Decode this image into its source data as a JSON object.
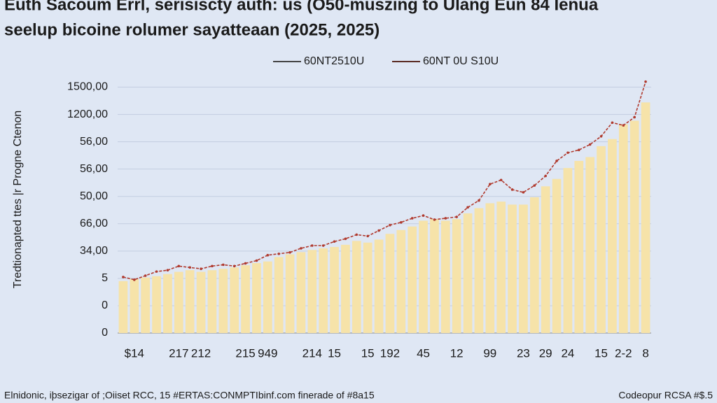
{
  "chart_data": {
    "type": "bar",
    "title": "Euth Sacoum Errl, serisiscty auth: us (O50-muszing to Ulang Eun 84 Ienua",
    "subtitle": "seelup bicoine rolumer sayatteaan (2025, 2025)",
    "y_label": "Tredtionapted ttes |r Progne Ctenon",
    "footer_left": "Elnidonic, iþsezigar of ;Oiiset RCC, 15 #ERTAS:CONMPTIbinf.com finerade of #8a15",
    "footer_right": "Codeopur RCSA #$.5",
    "categories": [
      null,
      "$14",
      null,
      null,
      null,
      "217",
      null,
      "212",
      null,
      null,
      null,
      "215",
      null,
      "949",
      null,
      null,
      null,
      "214",
      null,
      "15",
      null,
      null,
      "15",
      null,
      "192",
      null,
      null,
      "45",
      null,
      null,
      "12",
      null,
      null,
      "99",
      null,
      null,
      "23",
      null,
      "29",
      null,
      "24",
      null,
      null,
      "15",
      null,
      "2-2",
      null,
      "8"
    ],
    "series": [
      {
        "name": "60NT2510U",
        "color": "#f6e3a9",
        "values": [
          1.9,
          1.98,
          2.03,
          2.08,
          2.16,
          2.24,
          2.3,
          2.24,
          2.3,
          2.35,
          2.4,
          2.48,
          2.56,
          2.62,
          2.78,
          2.88,
          2.96,
          3.04,
          3.1,
          3.15,
          3.23,
          3.37,
          3.31,
          3.42,
          3.63,
          3.77,
          3.9,
          4.11,
          4.17,
          4.11,
          4.17,
          4.38,
          4.57,
          4.75,
          4.81,
          4.7,
          4.7,
          4.97,
          5.37,
          5.64,
          6.04,
          6.3,
          6.44,
          6.84,
          7.1,
          7.64,
          7.77,
          8.44
        ]
      },
      {
        "name": "60NT 0U S10U",
        "color": "#b03a2e",
        "values": [
          2.05,
          1.95,
          2.1,
          2.25,
          2.3,
          2.45,
          2.4,
          2.35,
          2.45,
          2.5,
          2.45,
          2.55,
          2.65,
          2.85,
          2.9,
          2.95,
          3.1,
          3.2,
          3.2,
          3.35,
          3.45,
          3.6,
          3.55,
          3.75,
          3.95,
          4.05,
          4.2,
          4.3,
          4.15,
          4.2,
          4.25,
          4.6,
          4.85,
          5.45,
          5.6,
          5.25,
          5.15,
          5.4,
          5.75,
          6.3,
          6.6,
          6.7,
          6.9,
          7.2,
          7.7,
          7.6,
          7.9,
          9.2
        ]
      }
    ],
    "ylim": [
      0,
      9.5
    ],
    "yticks": [
      {
        "value": 0,
        "label": "0"
      },
      {
        "value": 1,
        "label": "0"
      },
      {
        "value": 2,
        "label": "5"
      },
      {
        "value": 3,
        "label": "34,00"
      },
      {
        "value": 4,
        "label": "66,00"
      },
      {
        "value": 5,
        "label": "50,00"
      },
      {
        "value": 6,
        "label": "56,00"
      },
      {
        "value": 7,
        "label": "56,00"
      },
      {
        "value": 8,
        "label": "1200,00"
      },
      {
        "value": 9,
        "label": "1500,00"
      }
    ],
    "grid": true
  }
}
